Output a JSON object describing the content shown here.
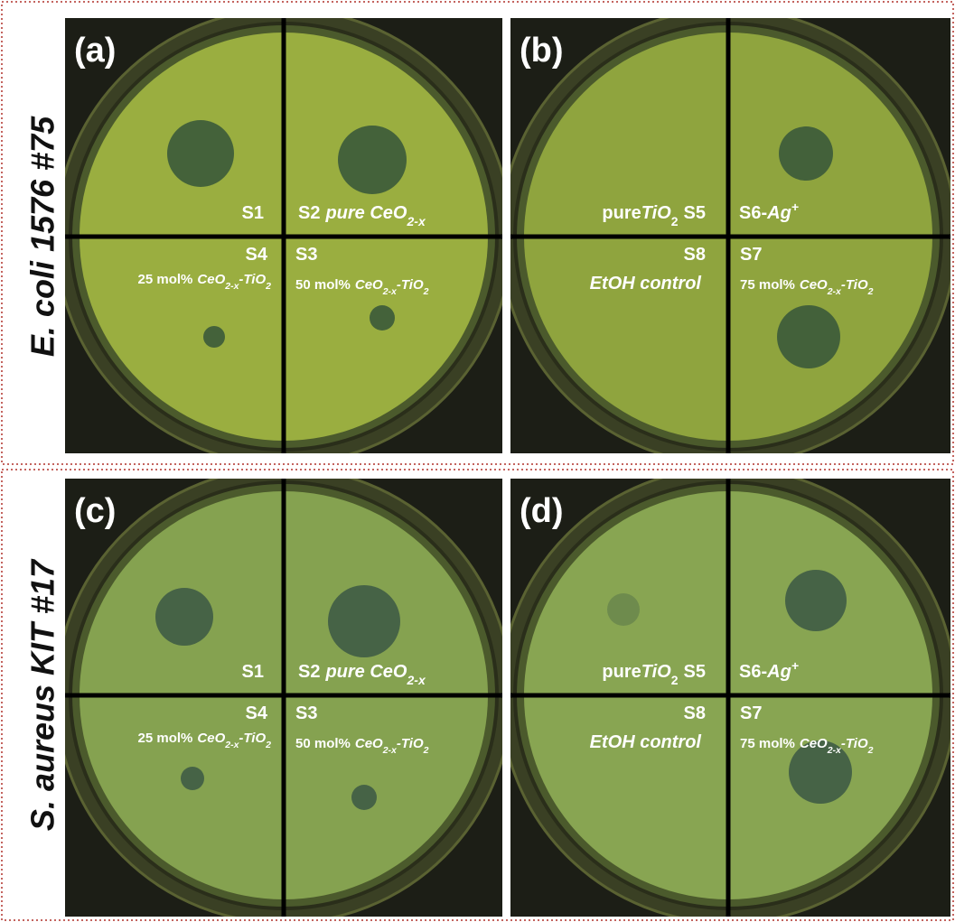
{
  "row_labels": [
    "E. coli 1576 #75",
    "S. aureus KIT #17"
  ],
  "panels": [
    {
      "label": "(a)",
      "labels": [
        [
          "S1"
        ],
        [
          "S2",
          "pure CeO",
          "2-x"
        ],
        [
          "S4"
        ],
        [
          "25 mol%",
          "CeO",
          "2-x",
          "-TiO",
          "2"
        ],
        [
          "S3"
        ],
        [
          "50 mol%",
          "CeO",
          "2-x",
          "-TiO",
          "2"
        ]
      ]
    },
    {
      "label": "(b)",
      "labels": [
        [
          "pure",
          "TiO",
          "2",
          "S5"
        ],
        [
          "S6-",
          "Ag",
          "+"
        ],
        [
          "S8"
        ],
        [
          "EtOH control"
        ],
        [
          "S7"
        ],
        [
          "75 mol%",
          "CeO",
          "2-x",
          "-TiO",
          "2"
        ]
      ]
    },
    {
      "label": "(c)",
      "labels": [
        [
          "S1"
        ],
        [
          "S2",
          "pure CeO",
          "2-x"
        ],
        [
          "S4"
        ],
        [
          "25 mol%",
          "CeO",
          "2-x",
          "-TiO",
          "2"
        ],
        [
          "S3"
        ],
        [
          "50 mol%",
          "CeO",
          "2-x",
          "-TiO",
          "2"
        ]
      ]
    },
    {
      "label": "(d)",
      "labels": [
        [
          "pure",
          "TiO",
          "2",
          "S5"
        ],
        [
          "S6-",
          "Ag",
          "+"
        ],
        [
          "S8"
        ],
        [
          "EtOH control"
        ],
        [
          "S7"
        ],
        [
          "75 mol%",
          "CeO",
          "2-x",
          "-TiO",
          "2"
        ]
      ]
    }
  ]
}
